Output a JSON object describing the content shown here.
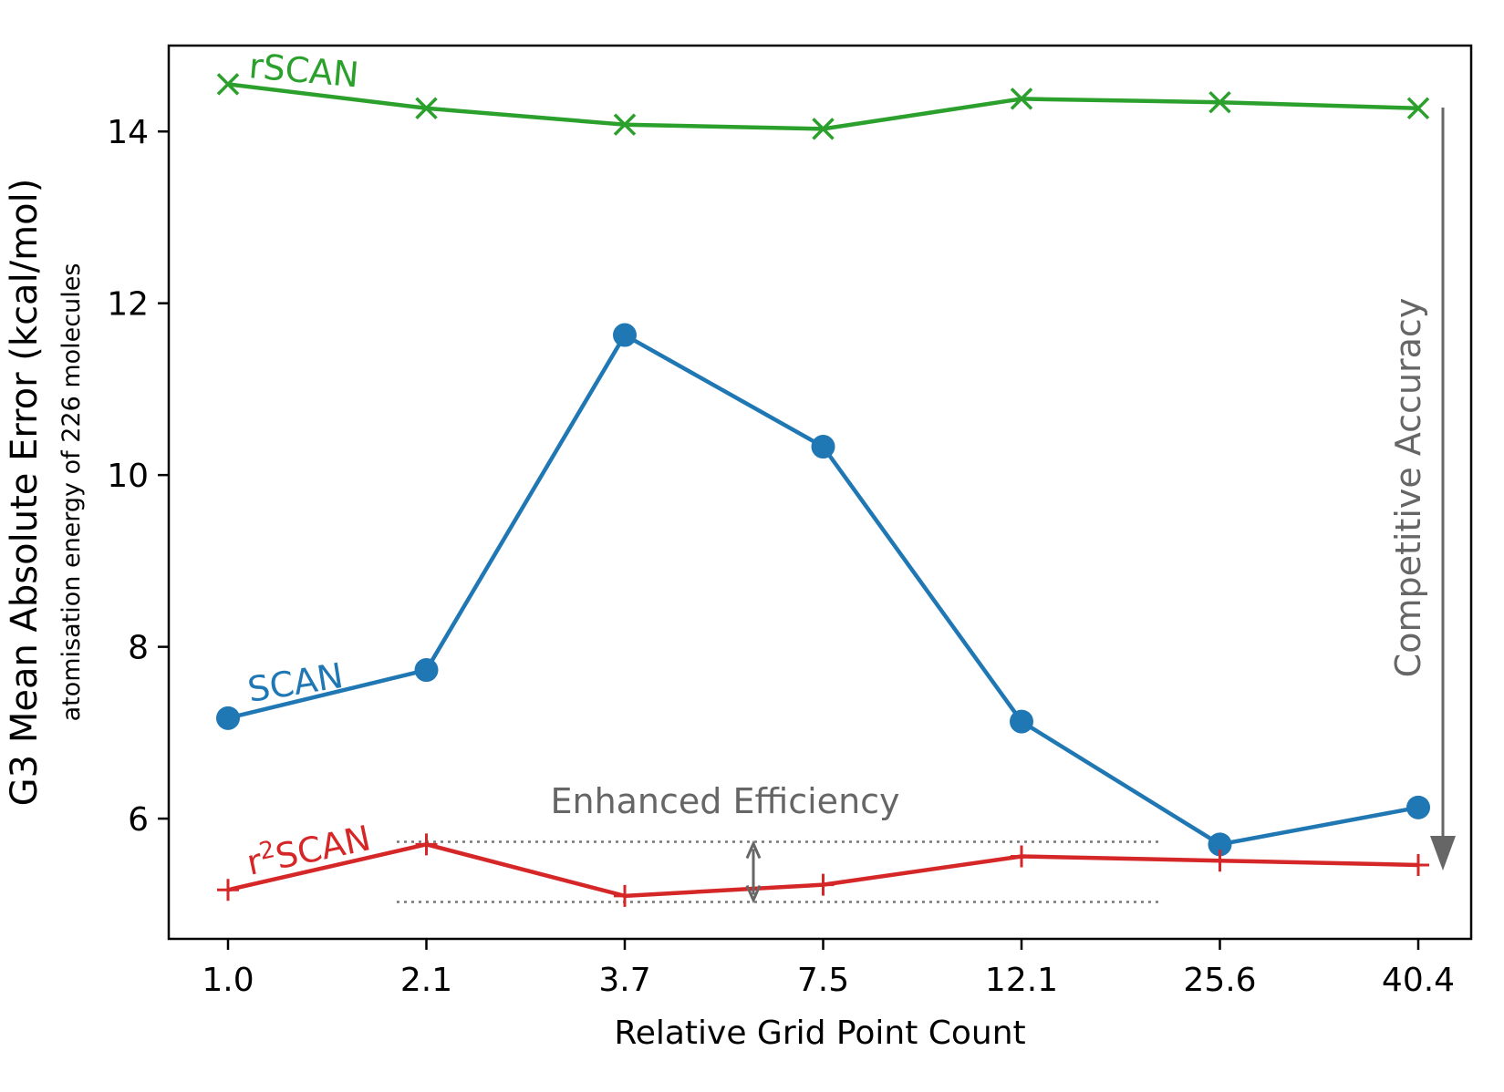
{
  "chart_data": {
    "type": "line",
    "title": "",
    "xlabel": "Relative Grid Point Count",
    "ylabel": "G3 Mean Absolute Error (kcal/mol)",
    "ylabel_sub": "atomisation energy of 226 molecules",
    "categories": [
      "1.0",
      "2.1",
      "3.7",
      "7.5",
      "12.1",
      "25.6",
      "40.4"
    ],
    "ylim": [
      4.6,
      15.0
    ],
    "yticks": [
      "6",
      "8",
      "10",
      "12",
      "14"
    ],
    "grid": false,
    "series": [
      {
        "name": "rSCAN",
        "label": "rSCAN",
        "color": "#2ca02c",
        "marker": "x",
        "values": [
          14.55,
          14.27,
          14.08,
          14.03,
          14.38,
          14.34,
          14.27
        ]
      },
      {
        "name": "SCAN",
        "label": "SCAN",
        "color": "#1f77b4",
        "marker": "o",
        "values": [
          7.17,
          7.73,
          11.63,
          10.33,
          7.13,
          5.7,
          6.13
        ]
      },
      {
        "name": "r2SCAN",
        "label_base": "r",
        "label_sup": "2",
        "label_rest": "SCAN",
        "color": "#d62728",
        "marker": "+",
        "values": [
          5.17,
          5.7,
          5.1,
          5.23,
          5.56,
          5.51,
          5.46
        ]
      }
    ],
    "annotations": {
      "efficiency": "Enhanced Efficiency",
      "accuracy": "Competitive Accuracy",
      "annotation_color": "#666666",
      "ref_upper": 5.73,
      "ref_lower": 5.03
    }
  }
}
